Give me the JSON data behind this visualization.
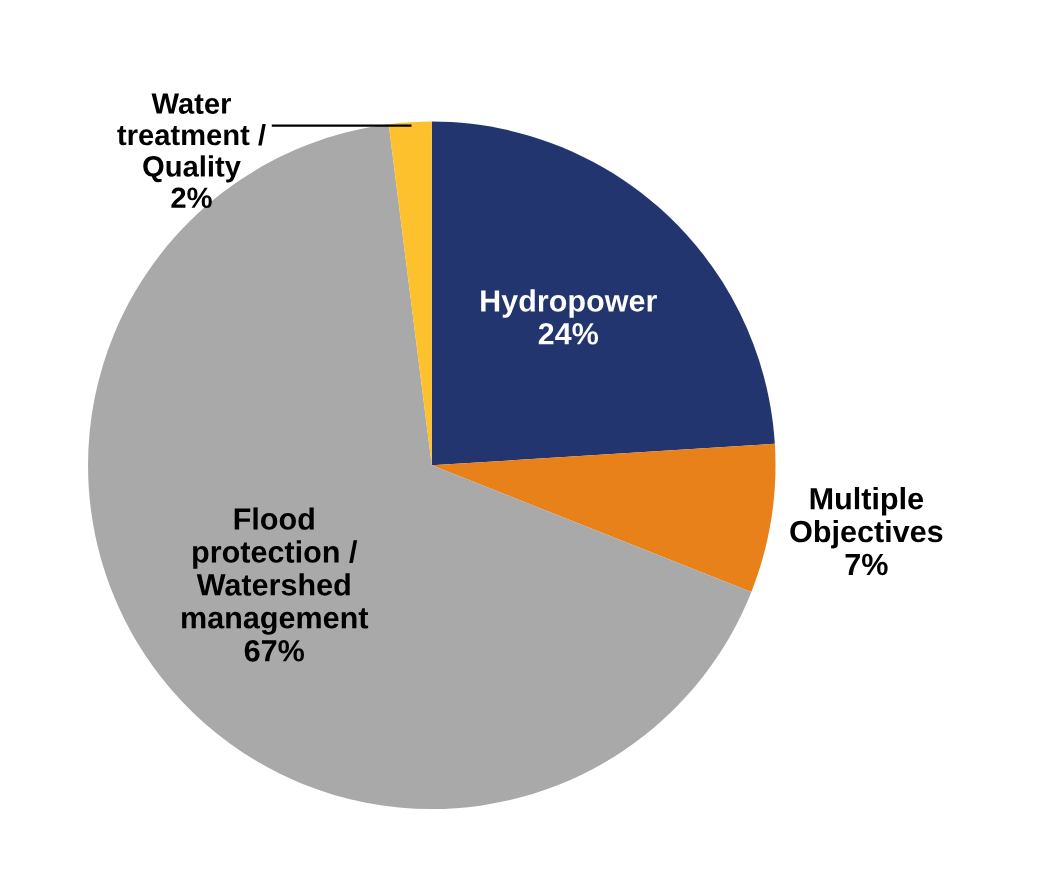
{
  "chart_data": {
    "type": "pie",
    "categories": [
      "Hydropower",
      "Multiple\nObjectives",
      "Flood\nprotection /\nWatershed\nmanagement",
      "Water\ntreatment /\nQuality"
    ],
    "values": [
      24,
      7,
      67,
      2
    ],
    "colors": [
      "#22356e",
      "#e8811a",
      "#a9a9a9",
      "#fcc12d"
    ],
    "value_labels": [
      "24%",
      "7%",
      "67%",
      "2%"
    ],
    "legend": false
  }
}
